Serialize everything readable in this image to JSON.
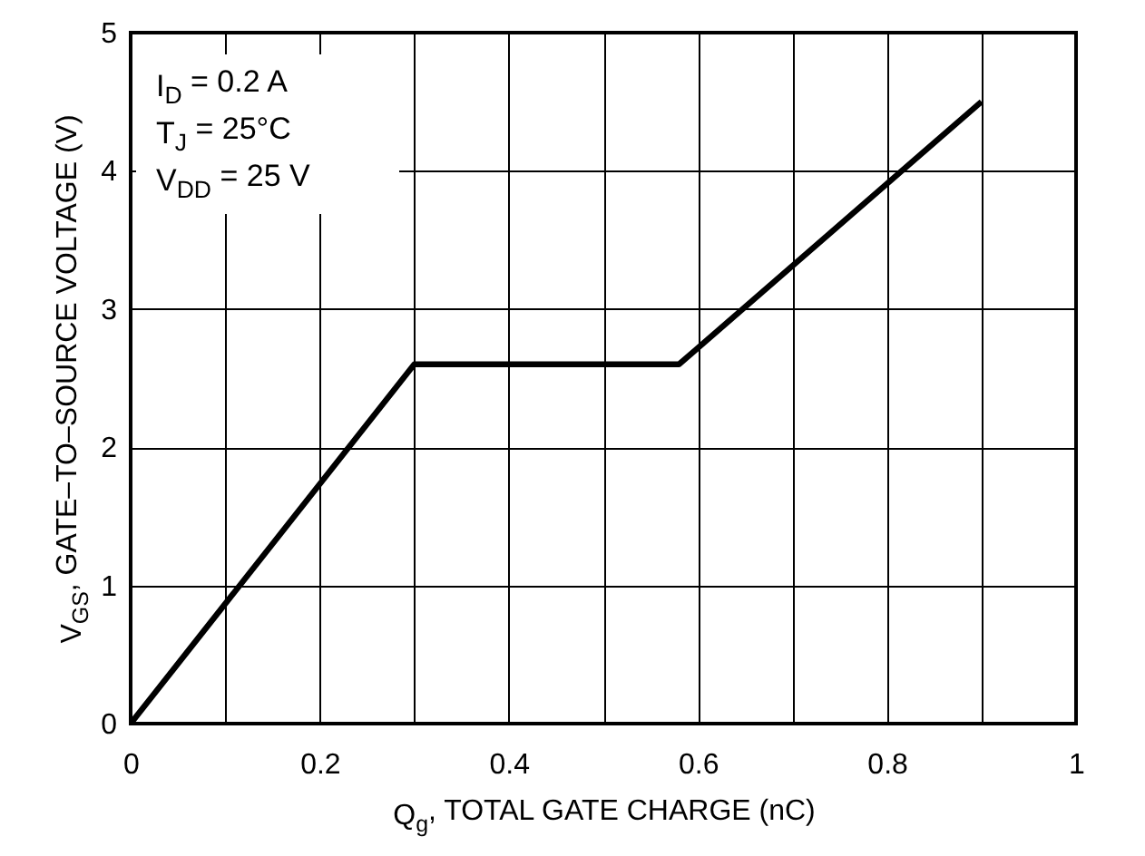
{
  "chart_data": {
    "type": "line",
    "xlabel": "Q$_{g}$, TOTAL GATE CHARGE (nC)",
    "ylabel": "V$_{GS}$, GATE–TO–SOURCE VOLTAGE (V)",
    "annotations": [
      "I$_{D}$ = 0.2 A",
      "T$_{J}$ = 25°C",
      "V$_{DD}$ = 25 V"
    ],
    "x": [
      0,
      0.3,
      0.58,
      0.9
    ],
    "series": [
      {
        "color": "#000000",
        "values": [
          0,
          2.6,
          2.6,
          4.5
        ]
      }
    ],
    "xlim": [
      0,
      1
    ],
    "ylim": [
      0,
      5
    ],
    "xticks": [
      0,
      {
        "value": 0.1,
        "label": null
      },
      0.2,
      {
        "value": 0.3,
        "label": null
      },
      0.4,
      {
        "value": 0.5,
        "label": null
      },
      0.6,
      {
        "value": 0.7,
        "label": null
      },
      0.8,
      {
        "value": 0.9,
        "label": null
      },
      1
    ],
    "yticks": [
      0,
      1,
      2,
      3,
      4,
      5
    ],
    "grid": true,
    "line_style": "solid",
    "marker": "none"
  }
}
